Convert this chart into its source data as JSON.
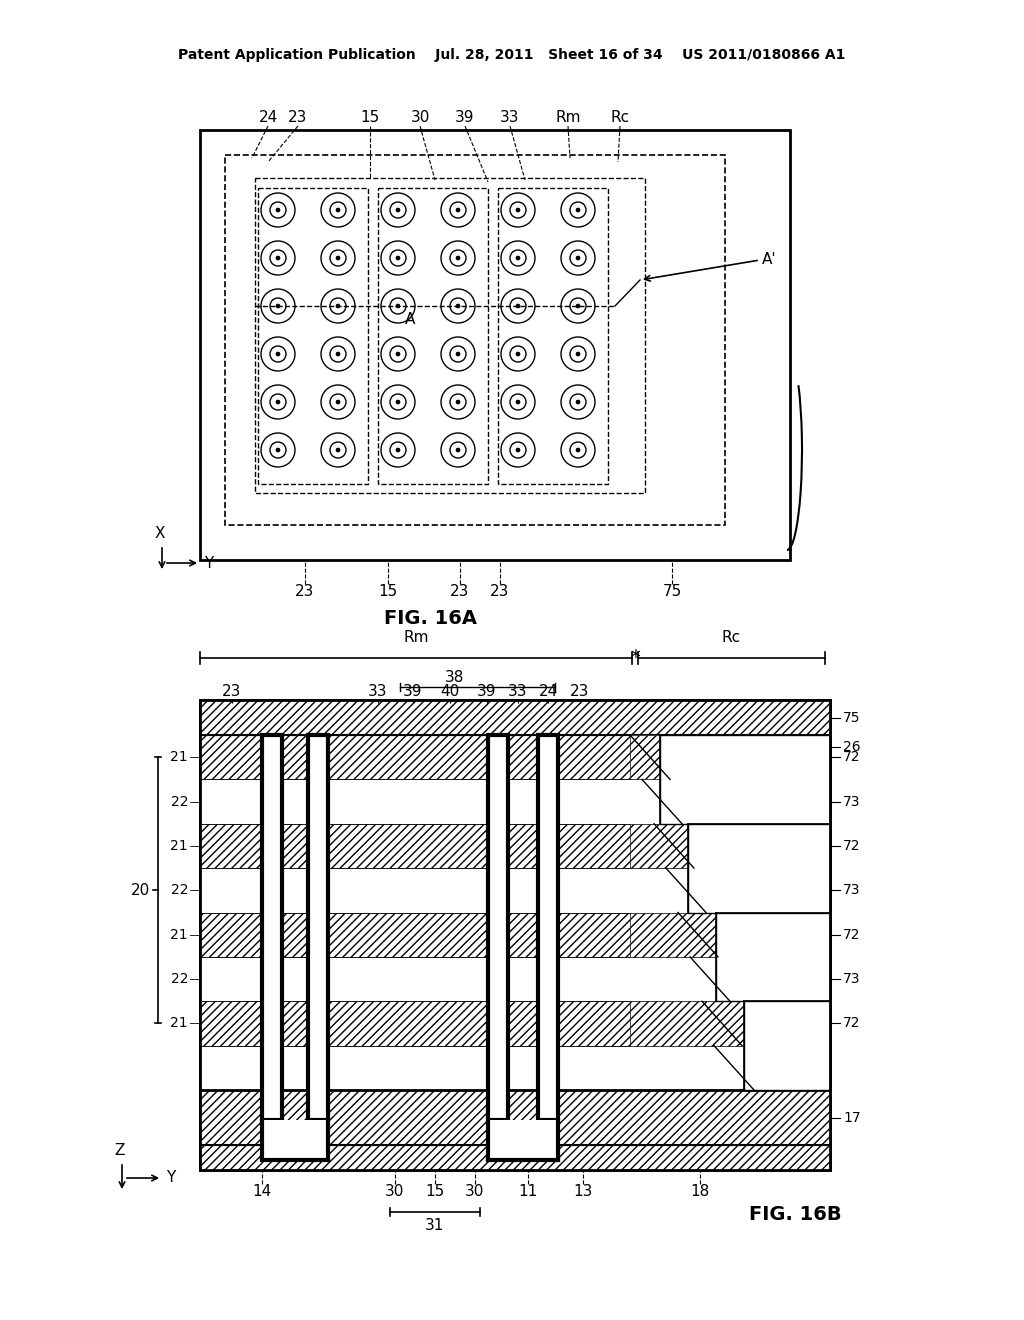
{
  "bg_color": "#ffffff",
  "header_text": "Patent Application Publication    Jul. 28, 2011   Sheet 16 of 34    US 2011/0180866 A1",
  "fig16a_label": "FIG. 16A",
  "fig16b_label": "FIG. 16B",
  "top_labels": [
    "24",
    "23",
    "15",
    "30",
    "39",
    "33",
    "Rm",
    "Rc"
  ],
  "bottom_labels_top": [
    "23",
    "15",
    "23",
    "23",
    "75"
  ],
  "bottom_labels_cross": [
    "23",
    "33",
    "39",
    "40",
    "39",
    "33",
    "24",
    "23"
  ],
  "side_labels_left": [
    "21",
    "22",
    "21",
    "22",
    "21",
    "22",
    "21"
  ],
  "side_labels_right": [
    "75",
    "26",
    "72",
    "73",
    "72",
    "73",
    "72",
    "73",
    "72",
    "17"
  ],
  "brace_labels": [
    "20"
  ],
  "bottom_labels_b": [
    "14",
    "30",
    "15",
    "30",
    "11",
    "13",
    "18"
  ],
  "brace31_label": "31",
  "rm_label": "Rm",
  "rc_label": "Rc",
  "label38": "38"
}
